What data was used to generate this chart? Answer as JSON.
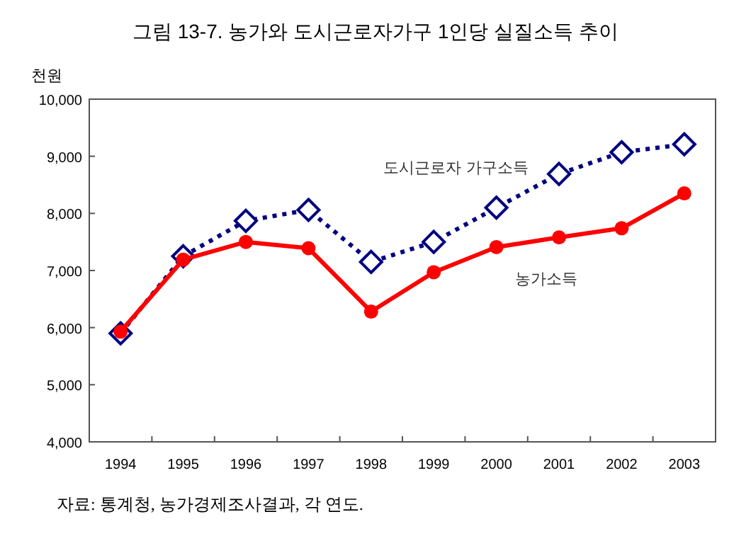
{
  "chart_data": {
    "type": "line",
    "title": "그림 13-7.  농가와 도시근로자가구 1인당 실질소득 추이",
    "ylabel": "천원",
    "categories": [
      "1994",
      "1995",
      "1996",
      "1997",
      "1998",
      "1999",
      "2000",
      "2001",
      "2002",
      "2003"
    ],
    "series": [
      {
        "name": "도시근로자 가구소득",
        "color": "#000080",
        "marker": "diamond",
        "line_style": "dotted",
        "values": [
          5900,
          7250,
          7870,
          8060,
          7150,
          7500,
          8100,
          8690,
          9070,
          9210
        ]
      },
      {
        "name": "농가소득",
        "color": "#ff0000",
        "marker": "circle",
        "line_style": "solid",
        "values": [
          5930,
          7190,
          7500,
          7390,
          6280,
          6970,
          7410,
          7580,
          7740,
          8350
        ]
      }
    ],
    "ylim": [
      4000,
      10000
    ],
    "yticks": [
      {
        "value": 4000,
        "label": "4,000"
      },
      {
        "value": 5000,
        "label": "5,000"
      },
      {
        "value": 6000,
        "label": "6,000"
      },
      {
        "value": 7000,
        "label": "7,000"
      },
      {
        "value": 8000,
        "label": "8,000"
      },
      {
        "value": 9000,
        "label": "9,000"
      },
      {
        "value": 10000,
        "label": "10,000"
      }
    ],
    "grid": false,
    "legend": false,
    "annotations": [
      "자료: 통계청, 농가경제조사결과, 각 연도."
    ]
  }
}
